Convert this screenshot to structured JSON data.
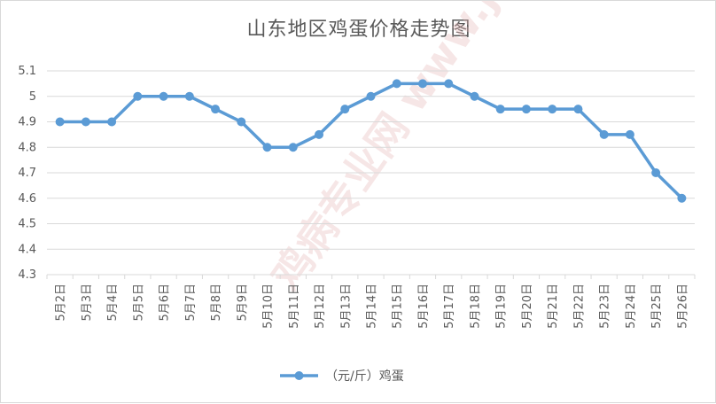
{
  "chart_data": {
    "type": "line",
    "title": "山东地区鸡蛋价格走势图",
    "categories": [
      "5月2日",
      "5月3日",
      "5月4日",
      "5月5日",
      "5月6日",
      "5月7日",
      "5月8日",
      "5月9日",
      "5月10日",
      "5月11日",
      "5月12日",
      "5月13日",
      "5月14日",
      "5月15日",
      "5月16日",
      "5月17日",
      "5月18日",
      "5月19日",
      "5月20日",
      "5月21日",
      "5月22日",
      "5月23日",
      "5月24日",
      "5月25日",
      "5月26日"
    ],
    "series": [
      {
        "name": "（元/斤）鸡蛋",
        "values": [
          4.9,
          4.9,
          4.9,
          5.0,
          5.0,
          5.0,
          4.95,
          4.9,
          4.8,
          4.8,
          4.85,
          4.95,
          5.0,
          5.05,
          5.05,
          5.05,
          5.0,
          4.95,
          4.95,
          4.95,
          4.95,
          4.85,
          4.85,
          4.7,
          4.6
        ]
      }
    ],
    "ylim": [
      4.3,
      5.1
    ],
    "yticks": [
      "4.3",
      "4.4",
      "4.5",
      "4.6",
      "4.7",
      "4.8",
      "4.9",
      "5",
      "5.1"
    ],
    "grid": true,
    "legend_position": "bottom",
    "colors": {
      "series": "#5b9bd5",
      "grid": "#d9d9d9",
      "text": "#595959"
    },
    "watermark": "鸡病专业网 www.jbzyw.com"
  }
}
